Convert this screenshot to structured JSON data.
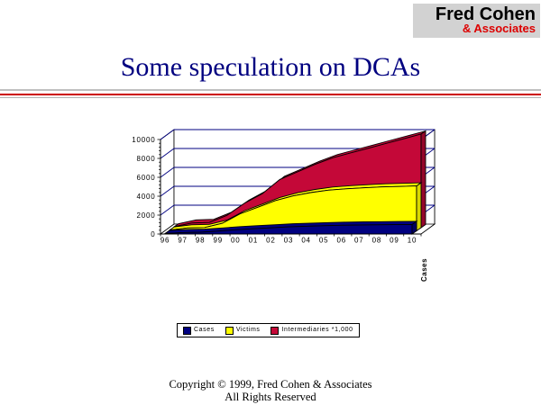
{
  "logo": {
    "line1": "Fred Cohen",
    "line2": "& Associates"
  },
  "title": "Some speculation on DCAs",
  "footer": {
    "line1": "Copyright © 1999, Fred Cohen & Associates",
    "line2": "All Rights Reserved"
  },
  "colors": {
    "title_text": "#000080",
    "logo_background": "#d2d2d2",
    "logo_accent": "#dd0000",
    "rule_gray": "#bfbfbf",
    "rule_red": "#cc0000"
  },
  "chart_data": {
    "type": "area",
    "projection": "3d",
    "x": [
      "96",
      "97",
      "98",
      "99",
      "00",
      "01",
      "02",
      "03",
      "04",
      "05",
      "06",
      "07",
      "08",
      "09",
      "10"
    ],
    "series": [
      {
        "name": "Cases",
        "color": "#000080",
        "cap_color": "#000060",
        "values": [
          50,
          150,
          180,
          300,
          450,
          550,
          650,
          750,
          820,
          880,
          920,
          950,
          970,
          990,
          1000
        ]
      },
      {
        "name": "Victims",
        "color": "#ffff00",
        "cap_color": "#d8d800",
        "values": [
          80,
          300,
          350,
          800,
          1800,
          2500,
          3200,
          3700,
          4050,
          4300,
          4450,
          4550,
          4650,
          4700,
          4750
        ]
      },
      {
        "name": "Intermediaries *1,000",
        "color": "#c40838",
        "cap_color": "#95062b",
        "values": [
          100,
          500,
          550,
          1300,
          2600,
          3600,
          5100,
          5900,
          6700,
          7400,
          7900,
          8400,
          8900,
          9400,
          9900
        ]
      }
    ],
    "ylim": [
      0,
      10000
    ],
    "ytick_step": 2000,
    "ytick_labels": [
      "0",
      "2000",
      "4000",
      "6000",
      "8000",
      "10000"
    ],
    "depth_axis_label": "Cases",
    "grid": true,
    "gridline_color": "#000080",
    "wall_color": "#ffffff",
    "outline_color": "#000000",
    "legend_position": "bottom"
  }
}
